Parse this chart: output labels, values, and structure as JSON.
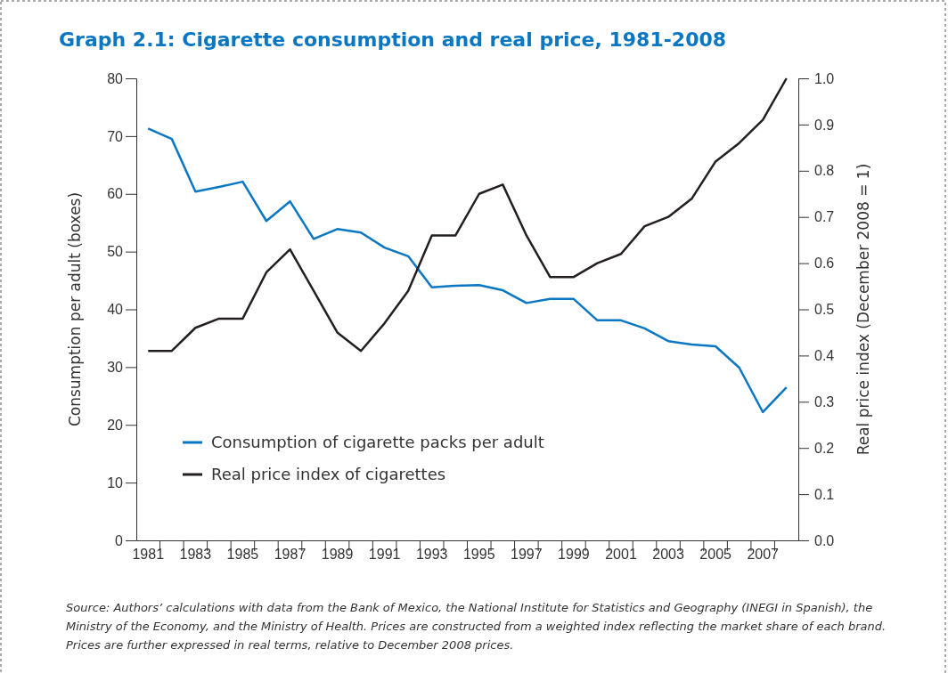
{
  "chart_data": {
    "type": "line",
    "title": "Graph 2.1: Cigarette consumption and real price, 1981-2008",
    "ylabel": "Consumption per adult (boxes)",
    "y2label": "Real price index (December 2008 = 1)",
    "categories": [
      "1981",
      null,
      "1983",
      null,
      "1985",
      null,
      "1987",
      null,
      "1989",
      null,
      "1991",
      null,
      "1993",
      null,
      "1995",
      null,
      "1997",
      null,
      "1999",
      null,
      "2001",
      null,
      "2003",
      null,
      "2005",
      null,
      "2007",
      null
    ],
    "series": [
      {
        "name": "Consumption of cigarette packs per adult",
        "color": "#0a77c4",
        "values": [
          71.3,
          69.5,
          60.4,
          61.2,
          62.1,
          55.3,
          58.7,
          52.2,
          53.9,
          53.3,
          50.7,
          49.2,
          43.8,
          44.1,
          44.2,
          43.3,
          41.1,
          41.8,
          41.8,
          38.1,
          38.1,
          36.7,
          34.5,
          33.9,
          33.6,
          29.9,
          22.2,
          26.5
        ]
      },
      {
        "name": "Real price index of cigarettes",
        "color": "#231f20",
        "axis": "y2",
        "values": [
          0.41,
          0.41,
          0.46,
          0.48,
          0.48,
          0.58,
          0.63,
          0.54,
          0.45,
          0.41,
          0.47,
          0.54,
          0.66,
          0.66,
          0.75,
          0.77,
          0.66,
          0.57,
          0.57,
          0.6,
          0.62,
          0.68,
          0.7,
          0.74,
          0.82,
          0.86,
          0.91,
          1.0
        ]
      }
    ],
    "ylim": [
      0,
      80
    ],
    "yticks": [
      0,
      10,
      20,
      30,
      40,
      50,
      60,
      70,
      80
    ],
    "y2lim": [
      0,
      1
    ],
    "y2ticks": [
      {
        "value": 0,
        "label": "0.0"
      },
      0.1,
      0.2,
      0.3,
      0.4,
      0.5,
      0.6,
      0.7,
      0.8,
      0.9,
      {
        "value": 1,
        "label": "1.0"
      }
    ],
    "legend": "bottom left",
    "grid": false,
    "annotations": [
      "Source: Authors’ calculations with data from the Bank of Mexico, the National Institute for Statistics and Geography (INEGI in Spanish), the Ministry of the Economy, and the Ministry of Health. Prices are constructed from a weighted index reflecting the market share of each brand. Prices are further expressed in real terms, relative to December 2008 prices."
    ]
  }
}
